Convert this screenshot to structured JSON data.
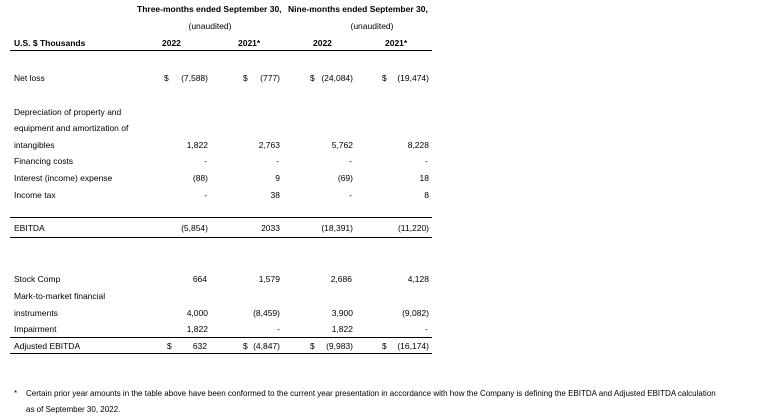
{
  "header": {
    "period_three": "Three-months ended September 30,",
    "period_nine": "Nine-months ended September 30,",
    "unaudited_three": "(unaudited)",
    "unaudited_nine": "(unaudited)",
    "units": "U.S. $ Thousands",
    "years": [
      "2022",
      "2021*",
      "2022",
      "2021*"
    ]
  },
  "rows": {
    "net_loss": {
      "label": "Net loss",
      "cur": [
        "$",
        "$",
        "$",
        "$"
      ],
      "vals": [
        "(7,588)",
        "(777)",
        "(24,084)",
        "(19,474)"
      ]
    },
    "dep_1": "Depreciation of property and",
    "dep_2": "equipment and amortization of",
    "dep_3": {
      "label": "intangibles",
      "vals": [
        "1,822",
        "2,763",
        "5,762",
        "8,228"
      ]
    },
    "financing": {
      "label": "Financing costs",
      "vals": [
        "-",
        "-",
        "-",
        "-"
      ]
    },
    "interest": {
      "label": "Interest (income) expense",
      "vals": [
        "(88)",
        "9",
        "(69)",
        "18"
      ]
    },
    "income_tax": {
      "label": "Income tax",
      "vals": [
        "-",
        "38",
        "-",
        "8"
      ]
    },
    "ebitda": {
      "label": "EBITDA",
      "vals": [
        "(5,854)",
        "2033",
        "(18,391)",
        "(11,220)"
      ]
    },
    "stock_comp": {
      "label": "Stock Comp",
      "vals": [
        "664",
        "1,579",
        "2,686",
        "4,128"
      ]
    },
    "mtm_1": "Mark-to-market financial",
    "mtm_2": {
      "label": "instruments",
      "vals": [
        "4,000",
        "(8,459)",
        "3,900",
        "(9,082)"
      ]
    },
    "impairment": {
      "label": "Impairment",
      "vals": [
        "1,822",
        "-",
        "1,822",
        "-"
      ]
    },
    "adj_ebitda": {
      "label": "Adjusted EBITDA",
      "cur": [
        "$",
        "$",
        "$",
        "$"
      ],
      "vals": [
        "632",
        "(4,847)",
        "(9,983)",
        "(16,174)"
      ]
    }
  },
  "footnote": {
    "marker": "*",
    "line1": "Certain prior year amounts in the table above have been conformed to the current year presentation in accordance with how the Company is defining the EBITDA and Adjusted EBITDA calculation",
    "line2": "as of September 30, 2022."
  }
}
